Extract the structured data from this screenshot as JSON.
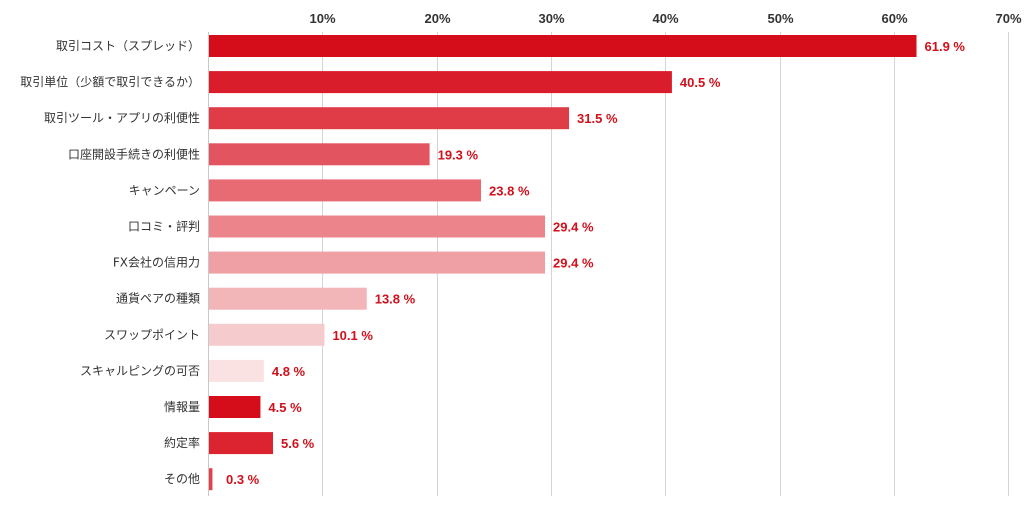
{
  "chart_data": {
    "type": "bar",
    "orientation": "horizontal",
    "title": "",
    "xlabel": "",
    "ylabel": "",
    "xlim": [
      0,
      70
    ],
    "ticks": [
      10,
      20,
      30,
      40,
      50,
      60,
      70
    ],
    "tick_suffix": "%",
    "grid": true,
    "categories": [
      "取引コスト（スプレッド）",
      "取引単位（少額で取引できるか）",
      "取引ツール・アプリの利便性",
      "口座開設手続きの利便性",
      "キャンペーン",
      "口コミ・評判",
      "FX会社の信用力",
      "通貨ペアの種類",
      "スワップポイント",
      "スキャルピングの可否",
      "情報量",
      "約定率",
      "その他"
    ],
    "values": [
      61.9,
      40.5,
      31.5,
      19.3,
      23.8,
      29.4,
      29.4,
      13.8,
      10.1,
      4.8,
      4.5,
      5.6,
      0.3
    ],
    "value_labels": [
      "61.9 %",
      "40.5 %",
      "31.5 %",
      "19.3 %",
      "23.8 %",
      "29.4 %",
      "29.4 %",
      "13.8 %",
      "10.1 %",
      "4.8 %",
      "4.5 %",
      "5.6 %",
      "0.3 %"
    ],
    "bar_colors": [
      "#d50d1a",
      "#da1d2b",
      "#e03c48",
      "#e25560",
      "#e86a73",
      "#ec848b",
      "#eea0a5",
      "#f2b5b8",
      "#f6cbce",
      "#fae2e3",
      "#d50d1a",
      "#dc2430",
      "#e4404b"
    ],
    "label_color": "#d0101b"
  }
}
